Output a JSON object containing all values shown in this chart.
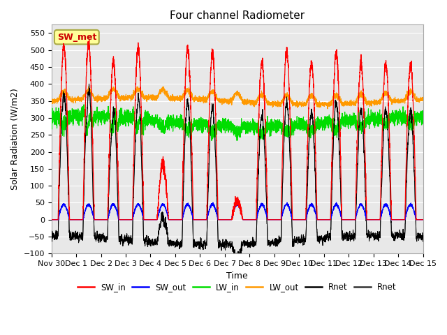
{
  "title": "Four channel Radiometer",
  "xlabel": "Time",
  "ylabel": "Solar Radiation (W/m2)",
  "ylim": [
    -100,
    575
  ],
  "yticks": [
    -100,
    -50,
    0,
    50,
    100,
    150,
    200,
    250,
    300,
    350,
    400,
    450,
    500,
    550
  ],
  "x_tick_labels": [
    "Nov 30",
    "Dec 1",
    "Dec 2",
    "Dec 3",
    "Dec 4",
    "Dec 5",
    "Dec 6",
    "Dec 7",
    "Dec 8",
    "Dec 9",
    "Dec 10",
    "Dec 11",
    "Dec 12",
    "Dec 13",
    "Dec 14",
    "Dec 15"
  ],
  "annotation_text": "SW_met",
  "annotation_color": "#cc0000",
  "annotation_bg": "#ffff99",
  "colors": {
    "SW_in": "#ff0000",
    "SW_out": "#0000ff",
    "LW_in": "#00dd00",
    "LW_out": "#ff9900",
    "Rnet": "#000000"
  },
  "legend_labels": [
    "SW_in",
    "SW_out",
    "LW_in",
    "LW_out",
    "Rnet",
    "Rnet"
  ],
  "plot_bg_color": "#e8e8e8"
}
